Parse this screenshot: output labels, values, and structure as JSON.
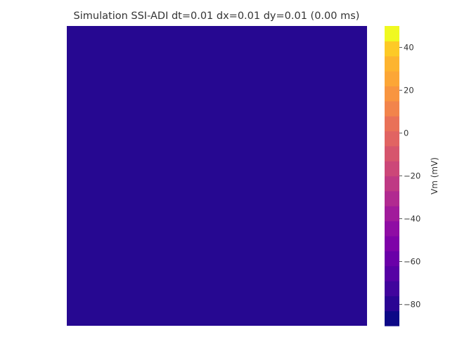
{
  "chart_data": {
    "type": "heatmap",
    "title": "Simulation SSI-ADI dt=0.01 dx=0.01 dy=0.01 (0.00 ms)",
    "xlabel": "",
    "ylabel": "",
    "grid": false,
    "values": [
      [
        -85
      ]
    ],
    "fill_color": "#260891",
    "colorbar": {
      "label": "Vm (mV)",
      "range": [
        -90,
        50
      ],
      "ticks": [
        40,
        20,
        0,
        -20,
        -40,
        -60,
        -80
      ],
      "tick_labels": [
        "40",
        "20",
        "0",
        "−20",
        "−40",
        "−60",
        "−80"
      ],
      "colormap": "plasma",
      "n_levels": 20,
      "colors": [
        "#0d0887",
        "#2a0593",
        "#41049d",
        "#5601a4",
        "#6a00a8",
        "#7e03a8",
        "#8f0da4",
        "#a11b9b",
        "#b12a90",
        "#bf3984",
        "#cc4778",
        "#d6556d",
        "#e16462",
        "#e97158",
        "#f2844b",
        "#f89540",
        "#fca636",
        "#fdb42f",
        "#fdca26",
        "#f0f921"
      ]
    }
  }
}
